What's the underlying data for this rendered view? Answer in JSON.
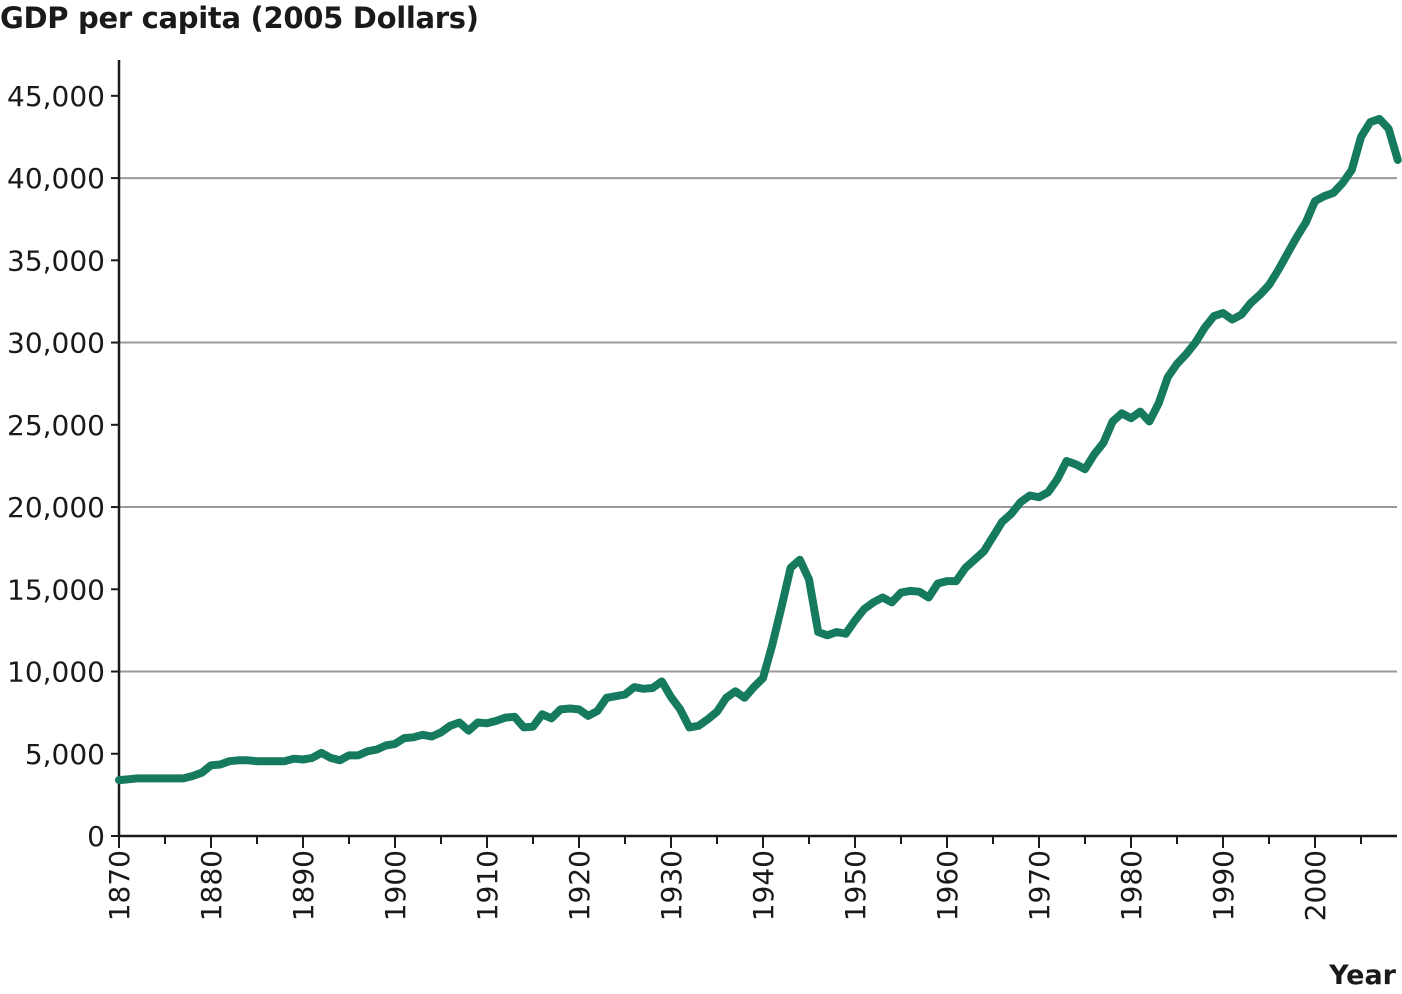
{
  "chart_data": {
    "type": "line",
    "title": "GDP per capita (2005 Dollars)",
    "xlabel": "Year",
    "ylabel": "",
    "xlim": [
      1870,
      2009
    ],
    "ylim": [
      0,
      47000
    ],
    "grid": true,
    "line_color": "#167a5e",
    "grid_color": "#9a9a9a",
    "x_ticks": [
      1870,
      1880,
      1890,
      1900,
      1910,
      1920,
      1930,
      1940,
      1950,
      1960,
      1970,
      1980,
      1990,
      2000
    ],
    "x_tick_labels": [
      "1870",
      "1880",
      "1890",
      "1900",
      "1910",
      "1920",
      "1930",
      "1940",
      "1950",
      "1960",
      "1970",
      "1980",
      "1990",
      "2000"
    ],
    "y_ticks": [
      0,
      5000,
      10000,
      15000,
      20000,
      25000,
      30000,
      35000,
      40000,
      45000
    ],
    "y_tick_labels": [
      "0",
      "5,000",
      "10,000",
      "15,000",
      "20,000",
      "25,000",
      "30,000",
      "35,000",
      "40,000",
      "45,000"
    ],
    "series": [
      {
        "x": [
          1870,
          1871,
          1872,
          1873,
          1874,
          1875,
          1876,
          1877,
          1878,
          1879,
          1880,
          1881,
          1882,
          1883,
          1884,
          1885,
          1886,
          1887,
          1888,
          1889,
          1890,
          1891,
          1892,
          1893,
          1894,
          1895,
          1896,
          1897,
          1898,
          1899,
          1900,
          1901,
          1902,
          1903,
          1904,
          1905,
          1906,
          1907,
          1908,
          1909,
          1910,
          1911,
          1912,
          1913,
          1914,
          1915,
          1916,
          1917,
          1918,
          1919,
          1920,
          1921,
          1922,
          1923,
          1924,
          1925,
          1926,
          1927,
          1928,
          1929,
          1930,
          1931,
          1932,
          1933,
          1934,
          1935,
          1936,
          1937,
          1938,
          1939,
          1940,
          1941,
          1942,
          1943,
          1944,
          1945,
          1946,
          1947,
          1948,
          1949,
          1950,
          1951,
          1952,
          1953,
          1954,
          1955,
          1956,
          1957,
          1958,
          1959,
          1960,
          1961,
          1962,
          1963,
          1964,
          1965,
          1966,
          1967,
          1968,
          1969,
          1970,
          1971,
          1972,
          1973,
          1974,
          1975,
          1976,
          1977,
          1978,
          1979,
          1980,
          1981,
          1982,
          1983,
          1984,
          1985,
          1986,
          1987,
          1988,
          1989,
          1990,
          1991,
          1992,
          1993,
          1994,
          1995,
          1996,
          1997,
          1998,
          1999,
          2000,
          2001,
          2002,
          2003,
          2004,
          2005,
          2006,
          2007,
          2008,
          2009
        ],
        "y": [
          3400,
          3450,
          3500,
          3500,
          3500,
          3500,
          3500,
          3500,
          3650,
          3850,
          4300,
          4350,
          4550,
          4600,
          4600,
          4550,
          4550,
          4550,
          4550,
          4700,
          4650,
          4750,
          5050,
          4750,
          4600,
          4900,
          4900,
          5150,
          5250,
          5500,
          5600,
          5950,
          6000,
          6150,
          6050,
          6300,
          6700,
          6900,
          6400,
          6900,
          6850,
          7000,
          7200,
          7250,
          6600,
          6650,
          7400,
          7150,
          7700,
          7750,
          7700,
          7300,
          7600,
          8400,
          8500,
          8600,
          9050,
          8950,
          9000,
          9400,
          8450,
          7700,
          6600,
          6700,
          7100,
          7550,
          8400,
          8800,
          8400,
          9050,
          9600,
          11600,
          13900,
          16300,
          16800,
          15600,
          12400,
          12200,
          12400,
          12300,
          13100,
          13800,
          14200,
          14500,
          14200,
          14800,
          14900,
          14850,
          14500,
          15350,
          15500,
          15500,
          16300,
          16800,
          17300,
          18200,
          19100,
          19600,
          20300,
          20700,
          20600,
          20900,
          21700,
          22800,
          22600,
          22300,
          23200,
          23900,
          25200,
          25700,
          25400,
          25800,
          25200,
          26300,
          27900,
          28700,
          29300,
          30000,
          30900,
          31600,
          31800,
          31400,
          31700,
          32400,
          32900,
          33500,
          34400,
          35400,
          36400,
          37300,
          38600,
          38900,
          39100,
          39700,
          40500,
          42500,
          43400,
          43600,
          43000,
          41100
        ]
      }
    ]
  }
}
